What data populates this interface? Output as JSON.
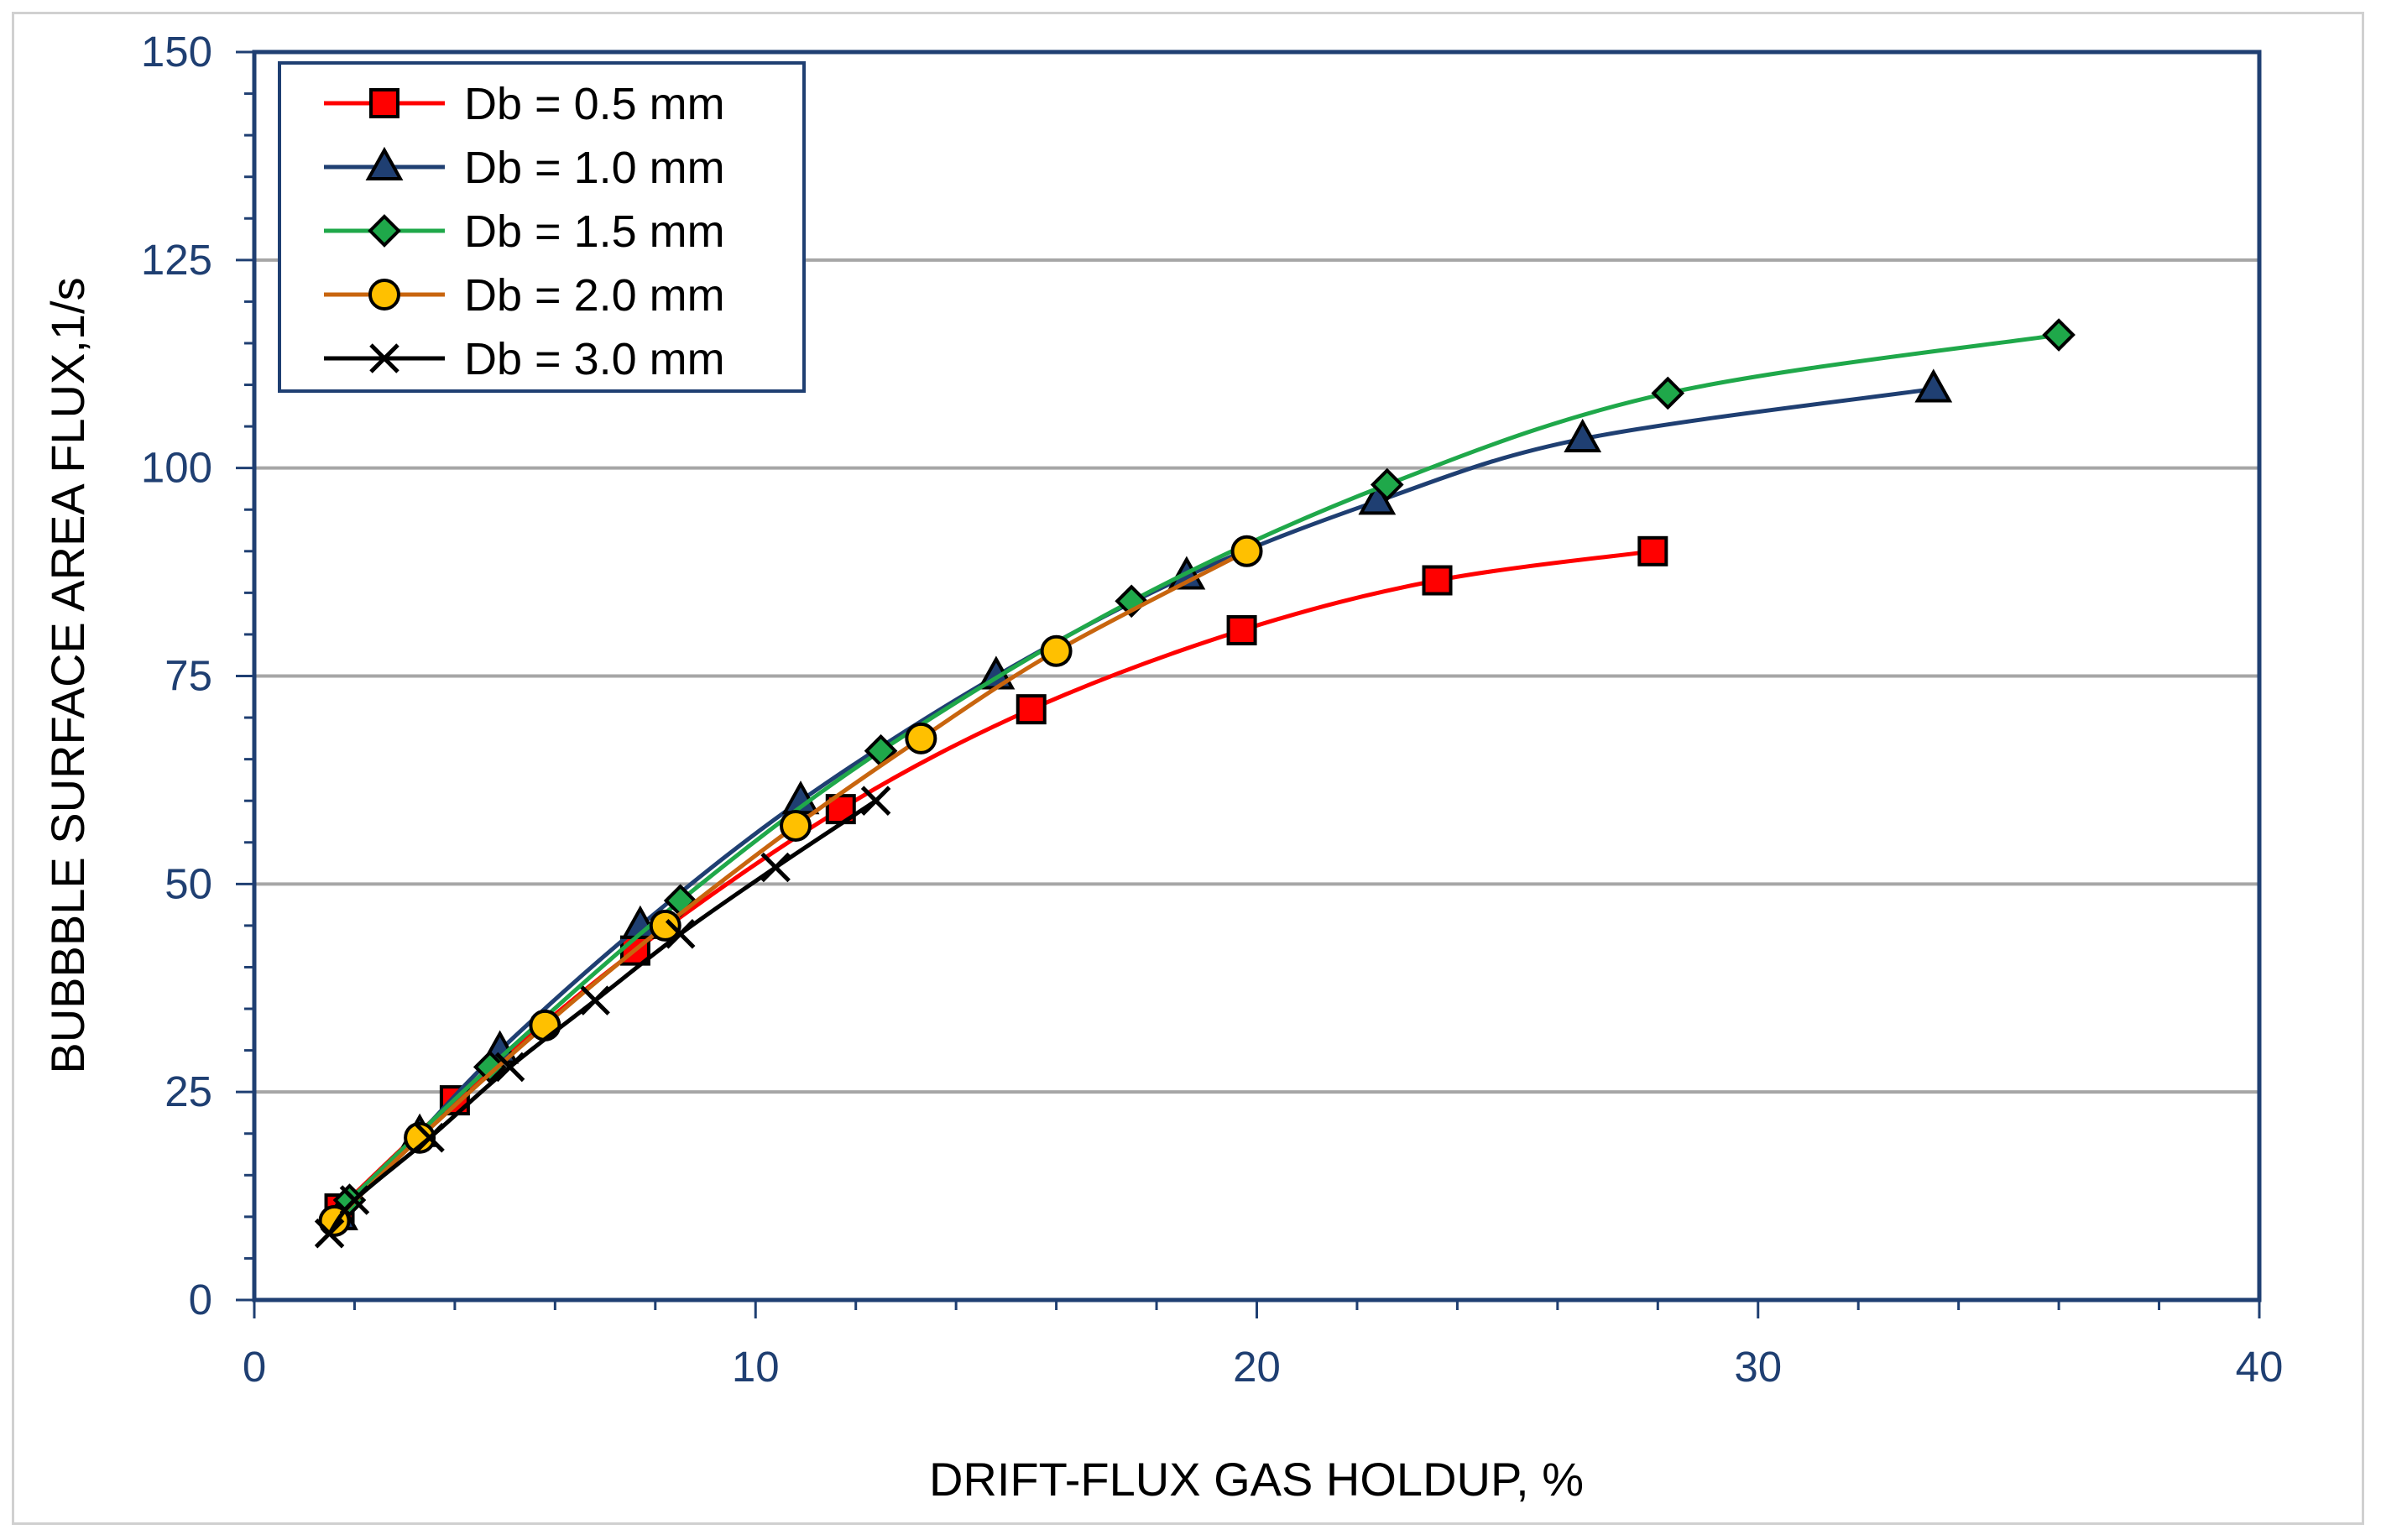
{
  "chart_data": {
    "type": "line",
    "title": "",
    "xlabel": "DRIFT-FLUX GAS HOLDUP, %",
    "ylabel": "BUBBBLE SURFACE AREA FLUX,1/s",
    "xlim": [
      0,
      40
    ],
    "ylim": [
      0,
      150
    ],
    "xticks": [
      0,
      10,
      20,
      30,
      40
    ],
    "yticks": [
      0,
      25,
      50,
      75,
      100,
      125,
      150
    ],
    "xtick_labels": [
      "0",
      "10",
      "20",
      "30",
      "40"
    ],
    "ytick_labels": [
      "0",
      "25",
      "50",
      "75",
      "100",
      "125",
      "150"
    ],
    "grid": "horizontal",
    "legend_position": "top-left",
    "series": [
      {
        "name": "Db = 0.5 mm",
        "color": "#ff0000",
        "marker": "square",
        "marker_fill": "#ff0000",
        "x": [
          1.7,
          4.0,
          7.6,
          11.7,
          15.5,
          19.7,
          23.6,
          27.9
        ],
        "y": [
          11,
          24,
          42,
          59,
          71,
          80.5,
          86.5,
          90
        ]
      },
      {
        "name": "Db = 1.0 mm",
        "color": "#1f3f72",
        "marker": "triangle",
        "marker_fill": "#1f3f72",
        "x": [
          1.7,
          3.3,
          4.9,
          7.7,
          10.9,
          14.8,
          18.6,
          22.4,
          26.5,
          33.5
        ],
        "y": [
          10,
          20,
          30,
          45,
          60,
          75,
          87,
          96,
          103.5,
          109.5
        ]
      },
      {
        "name": "Db = 1.5 mm",
        "color": "#1fa84a",
        "marker": "diamond",
        "marker_fill": "#1fa84a",
        "x": [
          1.9,
          4.7,
          8.5,
          12.5,
          17.5,
          22.6,
          28.2,
          36.0
        ],
        "y": [
          12,
          28,
          48,
          66,
          84,
          98,
          109,
          116
        ]
      },
      {
        "name": "Db = 2.0 mm",
        "color": "#c8650e",
        "marker": "circle",
        "marker_fill": "#ffc000",
        "x": [
          1.6,
          3.3,
          5.8,
          8.2,
          10.8,
          13.3,
          16.0,
          19.8
        ],
        "y": [
          9.5,
          19.5,
          33,
          45,
          57,
          67.5,
          78,
          90
        ]
      },
      {
        "name": "Db = 3.0 mm",
        "color": "#000000",
        "marker": "x",
        "marker_fill": "#000000",
        "x": [
          1.5,
          2.0,
          3.5,
          5.1,
          6.8,
          8.5,
          10.4,
          12.4
        ],
        "y": [
          8,
          12,
          19.5,
          28,
          36,
          44,
          52,
          60
        ]
      }
    ]
  }
}
